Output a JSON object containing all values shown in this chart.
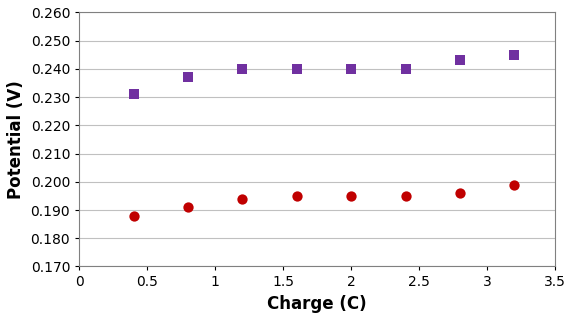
{
  "purple_x": [
    0.4,
    0.8,
    1.2,
    1.6,
    2.0,
    2.4,
    2.8,
    3.2
  ],
  "purple_y": [
    0.231,
    0.237,
    0.24,
    0.24,
    0.24,
    0.24,
    0.243,
    0.245
  ],
  "red_x": [
    0.4,
    0.8,
    1.2,
    1.6,
    2.0,
    2.4,
    2.8,
    3.2
  ],
  "red_y": [
    0.188,
    0.191,
    0.194,
    0.195,
    0.195,
    0.195,
    0.196,
    0.199
  ],
  "purple_color": "#7030A0",
  "red_color": "#C00000",
  "xlabel": "Charge (C)",
  "ylabel": "Potential (V)",
  "xlim": [
    0,
    3.5
  ],
  "ylim": [
    0.17,
    0.26
  ],
  "yticks": [
    0.17,
    0.18,
    0.19,
    0.2,
    0.21,
    0.22,
    0.23,
    0.24,
    0.25,
    0.26
  ],
  "xtick_labels": [
    "0",
    "0.5",
    "1",
    "1.5",
    "2",
    "2.5",
    "3",
    "3.5"
  ],
  "xticks": [
    0,
    0.5,
    1.0,
    1.5,
    2.0,
    2.5,
    3.0,
    3.5
  ],
  "marker_size_square": 55,
  "marker_size_circle": 55,
  "xlabel_fontsize": 12,
  "ylabel_fontsize": 12,
  "tick_fontsize": 10,
  "background_color": "#ffffff",
  "grid_color": "#c0c0c0",
  "spine_color": "#808080"
}
